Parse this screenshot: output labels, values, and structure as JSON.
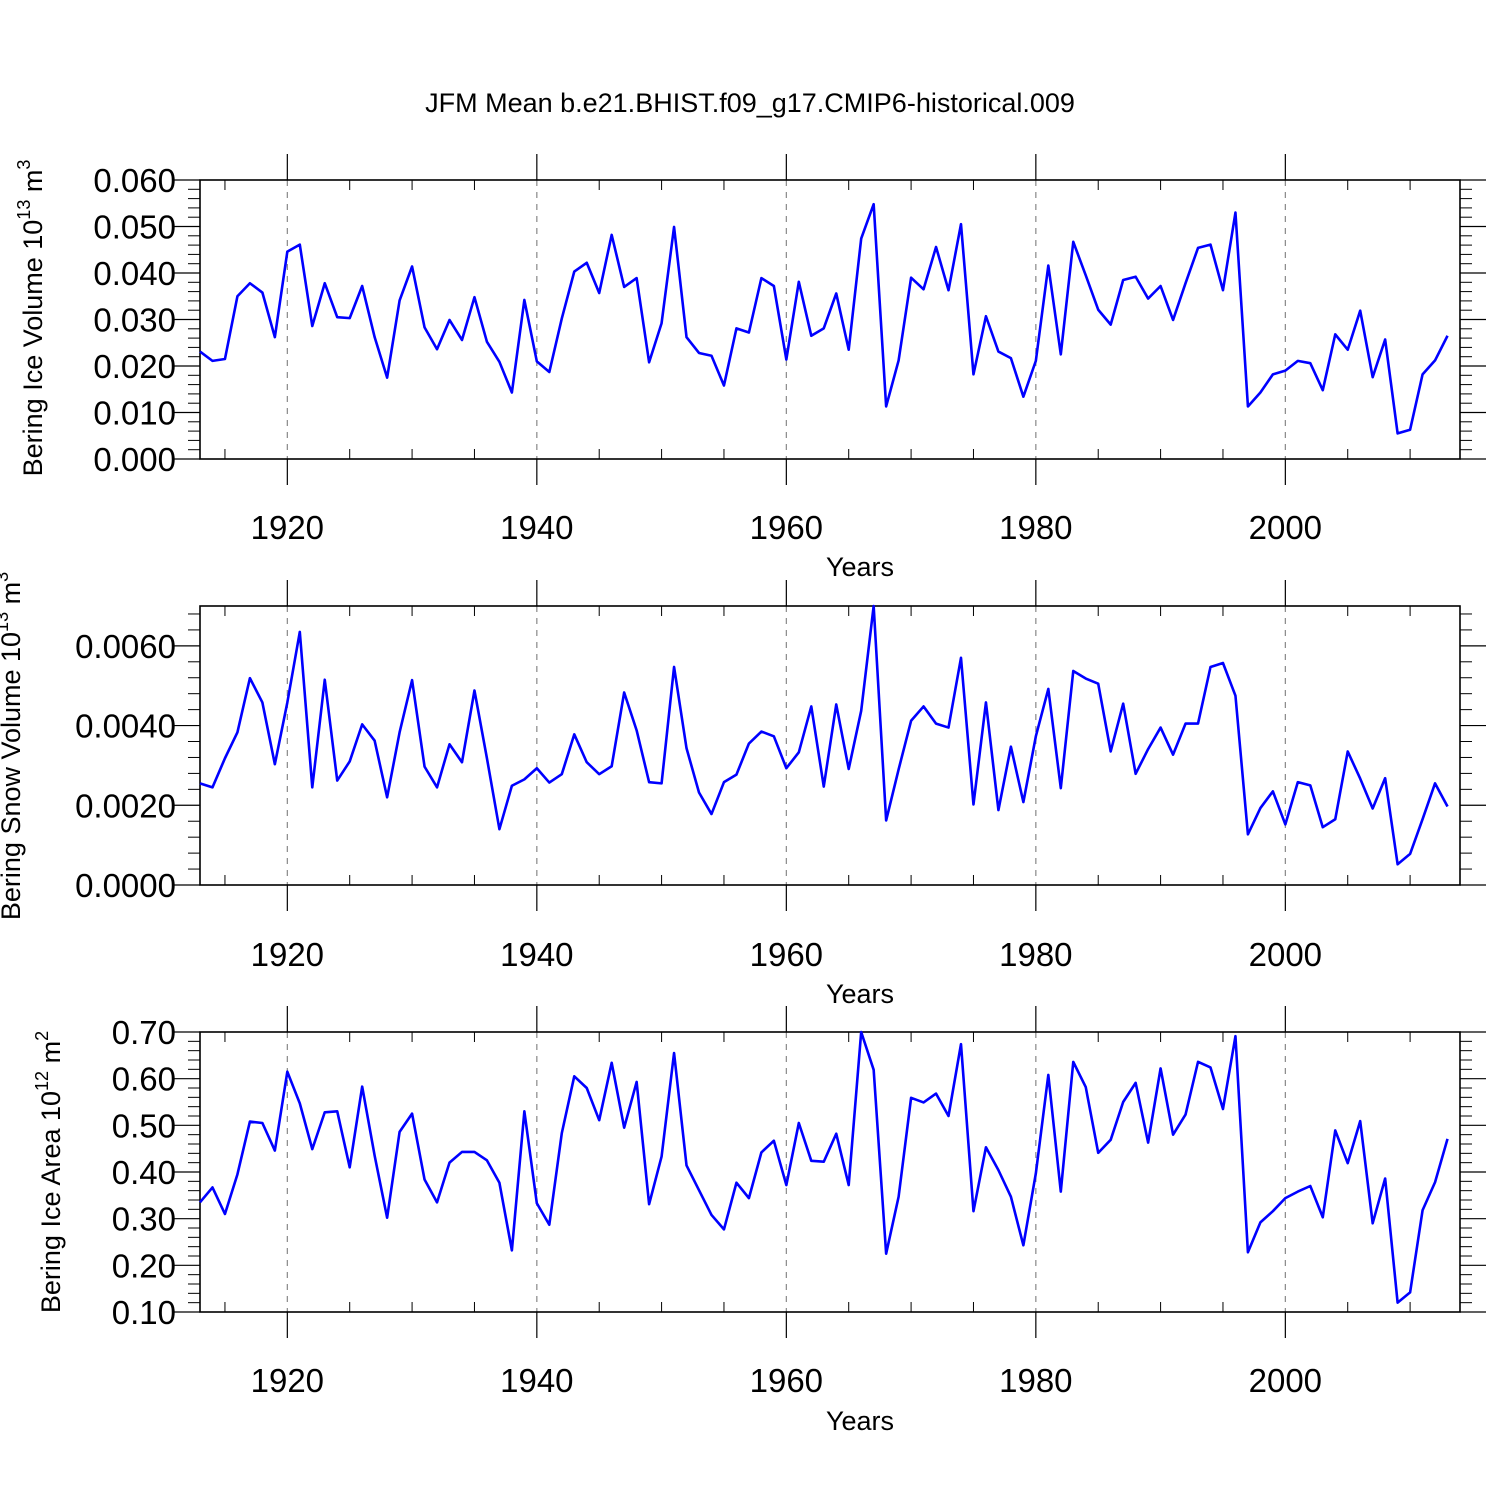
{
  "title": "JFM Mean b.e21.BHIST.f09_g17.CMIP6-historical.009",
  "line_color": "#0000ff",
  "chart_data": [
    {
      "type": "line",
      "ylabel": "Bering Ice Volume 10",
      "ylabel_exp": "13",
      "ylabel_unit": " m",
      "ylabel_unit_exp": "3",
      "xlabel": "Years",
      "xlim": [
        1913,
        2014
      ],
      "ylim": [
        0.0,
        0.06
      ],
      "yticks": [
        0.0,
        0.01,
        0.02,
        0.03,
        0.04,
        0.05,
        0.06
      ],
      "ytick_labels": [
        "0.000",
        "0.010",
        "0.020",
        "0.030",
        "0.040",
        "0.050",
        "0.060"
      ],
      "xticks": [
        1920,
        1940,
        1960,
        1980,
        2000
      ],
      "xtick_labels": [
        "1920",
        "1940",
        "1960",
        "1980",
        "2000"
      ],
      "x_start": 1913,
      "series": [
        {
          "values": [
            0.0231,
            0.0211,
            0.0215,
            0.035,
            0.0378,
            0.0358,
            0.0262,
            0.0446,
            0.0461,
            0.0286,
            0.0378,
            0.0305,
            0.0303,
            0.0372,
            0.0262,
            0.0175,
            0.0341,
            0.0414,
            0.0283,
            0.0236,
            0.0299,
            0.0256,
            0.0348,
            0.0252,
            0.0209,
            0.0143,
            0.0342,
            0.021,
            0.0187,
            0.0302,
            0.0403,
            0.0422,
            0.0357,
            0.0482,
            0.037,
            0.0389,
            0.0208,
            0.0292,
            0.0499,
            0.0262,
            0.0228,
            0.0222,
            0.0158,
            0.0281,
            0.0272,
            0.0389,
            0.0372,
            0.0214,
            0.0381,
            0.0265,
            0.0281,
            0.0356,
            0.0235,
            0.0474,
            0.0548,
            0.0113,
            0.0212,
            0.039,
            0.0365,
            0.0456,
            0.0363,
            0.0505,
            0.0182,
            0.0307,
            0.0231,
            0.0217,
            0.0134,
            0.0211,
            0.0416,
            0.0225,
            0.0467,
            0.0395,
            0.0321,
            0.0289,
            0.0385,
            0.0392,
            0.0345,
            0.0372,
            0.0299,
            0.0378,
            0.0454,
            0.0461,
            0.0363,
            0.053,
            0.0113,
            0.0143,
            0.0182,
            0.019,
            0.0211,
            0.0206,
            0.0148,
            0.0268,
            0.0235,
            0.0319,
            0.0176,
            0.0257,
            0.0055,
            0.0063,
            0.0182,
            0.0212,
            0.0265
          ]
        }
      ]
    },
    {
      "type": "line",
      "ylabel": "Bering Snow Volume 10",
      "ylabel_exp": "13",
      "ylabel_unit": " m",
      "ylabel_unit_exp": "3",
      "xlabel": "Years",
      "xlim": [
        1913,
        2014
      ],
      "ylim": [
        0.0,
        0.007
      ],
      "yticks": [
        0.0,
        0.002,
        0.004,
        0.006
      ],
      "ytick_labels": [
        "0.0000",
        "0.0020",
        "0.0040",
        "0.0060"
      ],
      "xticks": [
        1920,
        1940,
        1960,
        1980,
        2000
      ],
      "xtick_labels": [
        "1920",
        "1940",
        "1960",
        "1980",
        "2000"
      ],
      "x_start": 1913,
      "series": [
        {
          "values": [
            0.00255,
            0.00245,
            0.00318,
            0.00383,
            0.00519,
            0.00458,
            0.00303,
            0.00458,
            0.00635,
            0.00245,
            0.00515,
            0.00262,
            0.0031,
            0.00403,
            0.00362,
            0.0022,
            0.00383,
            0.00514,
            0.00297,
            0.00245,
            0.00353,
            0.00308,
            0.00488,
            0.00318,
            0.0014,
            0.00249,
            0.00265,
            0.00293,
            0.00257,
            0.00278,
            0.00378,
            0.00308,
            0.00278,
            0.00298,
            0.00483,
            0.00388,
            0.00258,
            0.00255,
            0.00547,
            0.00343,
            0.00232,
            0.00178,
            0.00258,
            0.00277,
            0.00355,
            0.00385,
            0.00373,
            0.00293,
            0.00333,
            0.00448,
            0.00247,
            0.00453,
            0.00291,
            0.00437,
            0.007,
            0.00162,
            0.0029,
            0.00412,
            0.00448,
            0.00405,
            0.00395,
            0.0057,
            0.00202,
            0.00458,
            0.00188,
            0.00347,
            0.00208,
            0.00373,
            0.00492,
            0.00243,
            0.00537,
            0.00518,
            0.00505,
            0.00335,
            0.00455,
            0.00279,
            0.00341,
            0.00395,
            0.00327,
            0.00405,
            0.00405,
            0.00547,
            0.00557,
            0.00475,
            0.00127,
            0.00193,
            0.00235,
            0.00152,
            0.00258,
            0.0025,
            0.00145,
            0.00165,
            0.00335,
            0.00267,
            0.00192,
            0.00268,
            0.00052,
            0.00078,
            0.00165,
            0.00255,
            0.00197
          ]
        }
      ]
    },
    {
      "type": "line",
      "ylabel": "Bering Ice Area 10",
      "ylabel_exp": "12",
      "ylabel_unit": " m",
      "ylabel_unit_exp": "2",
      "xlabel": "Years",
      "xlim": [
        1913,
        2014
      ],
      "ylim": [
        0.1,
        0.7
      ],
      "yticks": [
        0.1,
        0.2,
        0.3,
        0.4,
        0.5,
        0.6,
        0.7
      ],
      "ytick_labels": [
        "0.10",
        "0.20",
        "0.30",
        "0.40",
        "0.50",
        "0.60",
        "0.70"
      ],
      "xticks": [
        1920,
        1940,
        1960,
        1980,
        2000
      ],
      "xtick_labels": [
        "1920",
        "1940",
        "1960",
        "1980",
        "2000"
      ],
      "x_start": 1913,
      "series": [
        {
          "values": [
            0.335,
            0.367,
            0.31,
            0.395,
            0.508,
            0.505,
            0.446,
            0.615,
            0.547,
            0.449,
            0.528,
            0.53,
            0.41,
            0.583,
            0.435,
            0.302,
            0.486,
            0.525,
            0.384,
            0.335,
            0.42,
            0.443,
            0.443,
            0.425,
            0.377,
            0.232,
            0.53,
            0.333,
            0.287,
            0.483,
            0.605,
            0.58,
            0.511,
            0.634,
            0.495,
            0.593,
            0.331,
            0.433,
            0.655,
            0.414,
            0.361,
            0.308,
            0.277,
            0.377,
            0.344,
            0.442,
            0.467,
            0.372,
            0.505,
            0.424,
            0.422,
            0.482,
            0.372,
            0.7,
            0.619,
            0.225,
            0.347,
            0.559,
            0.549,
            0.568,
            0.52,
            0.674,
            0.316,
            0.453,
            0.404,
            0.347,
            0.243,
            0.397,
            0.608,
            0.358,
            0.636,
            0.582,
            0.441,
            0.469,
            0.55,
            0.591,
            0.463,
            0.622,
            0.48,
            0.523,
            0.636,
            0.624,
            0.535,
            0.691,
            0.228,
            0.292,
            0.316,
            0.344,
            0.358,
            0.37,
            0.303,
            0.489,
            0.419,
            0.509,
            0.29,
            0.386,
            0.12,
            0.142,
            0.318,
            0.378,
            0.471
          ]
        }
      ]
    }
  ]
}
